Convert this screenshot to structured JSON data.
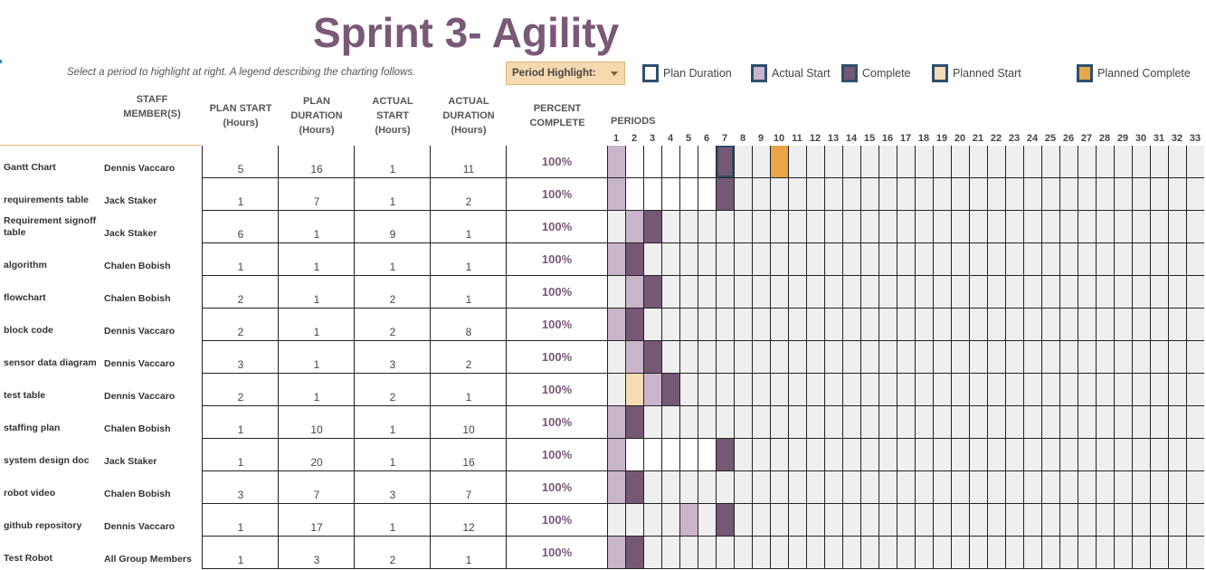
{
  "title": "Sprint 3- Agility",
  "instructions": "Select a period to highlight at right.  A legend describing the charting follows.",
  "period_highlight": {
    "label": "Period Highlight:",
    "selected_period": 7
  },
  "legend": [
    {
      "label": "Plan Duration",
      "fill": "#ffffff"
    },
    {
      "label": "Actual Start",
      "fill": "#c9b4cb"
    },
    {
      "label": "Complete",
      "fill": "#755874"
    },
    {
      "label": "Planned Start",
      "fill": "#f6dbb5"
    },
    {
      "label": "Planned Complete",
      "fill": "#e8a648"
    }
  ],
  "headers": {
    "staff": "STAFF\nMEMBER(S)",
    "plan_start": "PLAN START\n(Hours)",
    "plan_duration": "PLAN\nDURATION\n(Hours)",
    "actual_start": "ACTUAL\nSTART\n(Hours)",
    "actual_duration": "ACTUAL\nDURATION\n(Hours)",
    "percent_complete": "PERCENT\nCOMPLETE",
    "periods": "PERIODS"
  },
  "periods": [
    1,
    2,
    3,
    4,
    5,
    6,
    7,
    8,
    9,
    10,
    11,
    12,
    13,
    14,
    15,
    16,
    17,
    18,
    19,
    20,
    21,
    22,
    23,
    24,
    25,
    26,
    27,
    28,
    29,
    30,
    31,
    32,
    33
  ],
  "colors": {
    "accent": "#7a5878",
    "border_highlight": "#2d4f6e",
    "empty_cell": "#efefef"
  },
  "tasks": [
    {
      "name": "Gantt Chart",
      "staff": "Dennis Vaccaro",
      "plan_start": "5",
      "plan_duration": "16",
      "actual_start": "1",
      "actual_duration": "11",
      "percent": "100%",
      "cells": {
        "1": "actual",
        "2": "inplan",
        "3": "inplan",
        "4": "inplan",
        "5": "inplan",
        "6": "inplan",
        "7": "complete",
        "10": "pcomplete"
      }
    },
    {
      "name": "requirements table",
      "staff": "Jack Staker",
      "plan_start": "1",
      "plan_duration": "7",
      "actual_start": "1",
      "actual_duration": "2",
      "percent": "100%",
      "cells": {
        "1": "actual",
        "2": "inplan",
        "3": "inplan",
        "4": "inplan",
        "5": "inplan",
        "6": "inplan",
        "7": "complete"
      }
    },
    {
      "name": "Requirement signoff table",
      "staff": "Jack Staker",
      "plan_start": "6",
      "plan_duration": "1",
      "actual_start": "9",
      "actual_duration": "1",
      "percent": "100%",
      "cells": {
        "2": "actual",
        "3": "complete"
      }
    },
    {
      "name": "algorithm",
      "staff": "Chalen Bobish",
      "plan_start": "1",
      "plan_duration": "1",
      "actual_start": "1",
      "actual_duration": "1",
      "percent": "100%",
      "cells": {
        "1": "actual",
        "2": "complete"
      }
    },
    {
      "name": "flowchart",
      "staff": "Chalen Bobish",
      "plan_start": "2",
      "plan_duration": "1",
      "actual_start": "2",
      "actual_duration": "1",
      "percent": "100%",
      "cells": {
        "2": "actual",
        "3": "complete"
      }
    },
    {
      "name": "block code",
      "staff": "Dennis Vaccaro",
      "plan_start": "2",
      "plan_duration": "1",
      "actual_start": "2",
      "actual_duration": "8",
      "percent": "100%",
      "cells": {
        "1": "actual",
        "2": "complete"
      }
    },
    {
      "name": "sensor data diagram",
      "staff": "Dennis Vaccaro",
      "plan_start": "3",
      "plan_duration": "1",
      "actual_start": "3",
      "actual_duration": "2",
      "percent": "100%",
      "cells": {
        "2": "actual",
        "3": "complete"
      }
    },
    {
      "name": "test table",
      "staff": "Dennis Vaccaro",
      "plan_start": "2",
      "plan_duration": "1",
      "actual_start": "2",
      "actual_duration": "1",
      "percent": "100%",
      "cells": {
        "2": "pstart",
        "3": "actual",
        "4": "complete"
      }
    },
    {
      "name": "staffing plan",
      "staff": "Chalen Bobish",
      "plan_start": "1",
      "plan_duration": "10",
      "actual_start": "1",
      "actual_duration": "10",
      "percent": "100%",
      "cells": {
        "1": "actual",
        "2": "complete"
      }
    },
    {
      "name": "system design doc",
      "staff": "Jack Staker",
      "plan_start": "1",
      "plan_duration": "20",
      "actual_start": "1",
      "actual_duration": "16",
      "percent": "100%",
      "cells": {
        "1": "actual",
        "2": "inplan",
        "3": "inplan",
        "4": "inplan",
        "5": "inplan",
        "6": "inplan",
        "7": "complete"
      }
    },
    {
      "name": "robot video",
      "staff": "Chalen Bobish",
      "plan_start": "3",
      "plan_duration": "7",
      "actual_start": "3",
      "actual_duration": "7",
      "percent": "100%",
      "cells": {
        "1": "actual",
        "2": "complete"
      }
    },
    {
      "name": "github repository",
      "staff": "Dennis Vaccaro",
      "plan_start": "1",
      "plan_duration": "17",
      "actual_start": "1",
      "actual_duration": "12",
      "percent": "100%",
      "cells": {
        "5": "actual",
        "7": "complete"
      }
    },
    {
      "name": "Test Robot",
      "staff": "All Group Members",
      "plan_start": "1",
      "plan_duration": "3",
      "actual_start": "2",
      "actual_duration": "1",
      "percent": "100%",
      "cells": {
        "1": "actual",
        "2": "complete"
      }
    }
  ]
}
